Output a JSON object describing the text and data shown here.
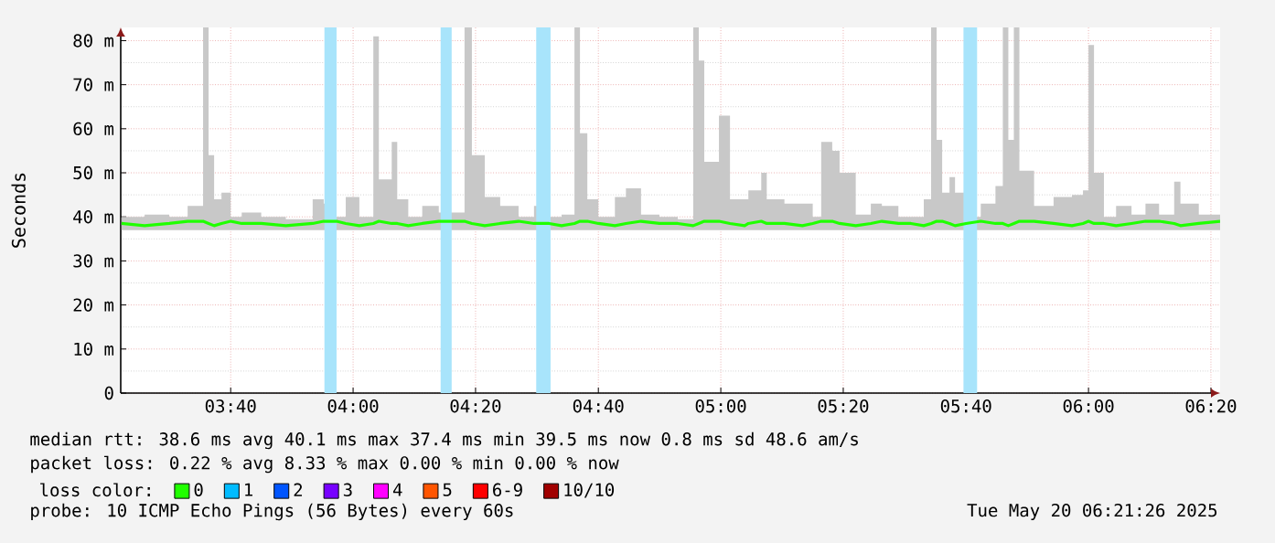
{
  "chart_data": {
    "type": "line",
    "ylabel": "Seconds",
    "x": [
      3.37,
      3.433,
      3.5,
      3.55,
      3.592,
      3.607,
      3.622,
      3.642,
      3.667,
      3.697,
      3.75,
      3.817,
      3.89,
      3.92,
      3.955,
      3.98,
      4.017,
      4.055,
      4.07,
      4.105,
      4.12,
      4.15,
      4.188,
      4.233,
      4.303,
      4.323,
      4.358,
      4.4,
      4.45,
      4.492,
      4.533,
      4.567,
      4.602,
      4.617,
      4.637,
      4.667,
      4.712,
      4.742,
      4.783,
      4.833,
      4.883,
      4.925,
      4.94,
      4.955,
      4.995,
      5.025,
      5.065,
      5.075,
      5.11,
      5.125,
      5.173,
      5.222,
      5.25,
      5.273,
      5.303,
      5.323,
      5.367,
      5.408,
      5.438,
      5.483,
      5.517,
      5.552,
      5.572,
      5.587,
      5.602,
      5.622,
      5.637,
      5.667,
      5.707,
      5.747,
      5.767,
      5.782,
      5.797,
      5.812,
      5.852,
      5.905,
      5.955,
      5.985,
      6.0,
      6.015,
      6.042,
      6.075,
      6.117,
      6.155,
      6.192,
      6.233,
      6.25,
      6.3,
      6.358
    ],
    "series": [
      {
        "name": "0",
        "color": "#20ff00",
        "values": [
          38.5,
          38,
          38.5,
          39,
          39,
          38.5,
          38,
          38.5,
          39,
          38.5,
          38.5,
          38,
          38.5,
          39,
          39,
          38.5,
          38,
          38.5,
          39,
          38.5,
          38.5,
          38,
          38.5,
          39,
          39,
          38.5,
          38,
          38.5,
          39,
          38.5,
          38.5,
          38,
          38.5,
          39,
          39,
          38.5,
          38,
          38.5,
          39,
          38.5,
          38.5,
          38,
          38.5,
          39,
          39,
          38.5,
          38,
          38.5,
          39,
          38.5,
          38.5,
          38,
          38.5,
          39,
          39,
          38.5,
          38,
          38.5,
          39,
          38.5,
          38.5,
          38,
          38.5,
          39,
          39,
          38.5,
          38,
          38.5,
          39,
          38.5,
          38.5,
          38,
          38.5,
          39,
          39,
          38.5,
          38,
          38.5,
          39,
          38.5,
          38.5,
          38,
          38.5,
          39,
          39,
          38.5,
          38,
          38.5,
          39
        ],
        "lower": [
          37,
          37,
          37,
          37,
          37,
          37,
          37,
          37,
          37,
          37,
          37,
          37,
          37,
          37,
          37,
          37,
          37,
          37,
          37,
          37,
          37,
          37,
          37,
          37,
          37,
          37,
          37,
          37,
          37,
          37,
          37,
          37,
          37,
          37,
          37,
          37,
          37,
          37,
          37,
          37,
          37,
          37,
          37,
          37,
          37,
          37,
          37,
          37,
          37,
          37,
          37,
          37,
          37,
          37,
          37,
          37,
          37,
          37,
          37,
          37,
          37,
          37,
          37,
          37,
          37,
          37,
          37,
          37,
          37,
          37,
          37,
          37,
          37,
          37,
          37,
          37,
          37,
          37,
          37,
          37,
          37,
          37,
          37,
          37,
          37,
          37,
          37,
          37,
          37
        ],
        "upper": [
          40,
          40.5,
          40,
          42.5,
          83,
          54,
          44,
          45.5,
          40,
          41,
          40,
          39.5,
          44,
          43,
          40,
          44.5,
          40,
          81,
          48.5,
          57,
          44,
          40,
          42.5,
          41,
          83,
          54,
          44.5,
          42.5,
          40,
          42.5,
          40,
          40.5,
          83,
          59,
          44,
          40,
          44.5,
          46.5,
          40.5,
          40,
          39.5,
          83,
          75.5,
          52.5,
          63,
          44,
          44,
          46,
          50,
          44,
          43,
          43,
          40,
          57,
          55,
          50,
          40.5,
          43,
          42.5,
          40,
          40,
          44,
          83,
          57.5,
          45.5,
          49,
          45.5,
          40,
          43,
          47,
          83,
          57.5,
          83,
          50.5,
          42.5,
          44.5,
          45,
          46,
          79,
          50,
          40,
          42.5,
          40.5,
          43,
          40.5,
          48,
          43,
          40.5,
          40
        ]
      },
      {
        "name": "1",
        "color": "#00bbff",
        "values": [
          null,
          null,
          null,
          null,
          null,
          null,
          null,
          null,
          null,
          null,
          null,
          null,
          null,
          null,
          null,
          null,
          null,
          null,
          null,
          null,
          null,
          null,
          null,
          null,
          null,
          null,
          null,
          null,
          null,
          null,
          null,
          null,
          null,
          null,
          null,
          null,
          null,
          null,
          null,
          null,
          null,
          null,
          null,
          null,
          null,
          null,
          null,
          null,
          null,
          null,
          null,
          null,
          null,
          null,
          null,
          null,
          null,
          null,
          null,
          null,
          null,
          null,
          null,
          null,
          null,
          null,
          null,
          null,
          null,
          null,
          null,
          null,
          null,
          null,
          null,
          null,
          null,
          null,
          null,
          null,
          null,
          null,
          null,
          null,
          null,
          null,
          null,
          null,
          null
        ]
      },
      {
        "name": "2",
        "color": "#0055ff",
        "values": [
          null,
          null,
          null,
          null,
          null,
          null,
          null,
          null,
          null,
          null,
          null,
          null,
          null,
          null,
          null,
          null,
          null,
          null,
          null,
          null,
          null,
          null,
          null,
          null,
          null,
          null,
          null,
          null,
          null,
          null,
          null,
          null,
          null,
          null,
          null,
          null,
          null,
          null,
          null,
          null,
          null,
          null,
          null,
          null,
          null,
          null,
          null,
          null,
          null,
          null,
          null,
          null,
          null,
          null,
          null,
          null,
          null,
          null,
          null,
          null,
          null,
          null,
          null,
          null,
          null,
          null,
          null,
          null,
          null,
          null,
          null,
          null,
          null,
          null,
          null,
          null,
          null,
          null,
          null,
          null,
          null,
          null,
          null,
          null,
          null,
          null,
          null,
          null,
          null
        ]
      },
      {
        "name": "3",
        "color": "#7700ff",
        "values": [
          null,
          null,
          null,
          null,
          null,
          null,
          null,
          null,
          null,
          null,
          null,
          null,
          null,
          null,
          null,
          null,
          null,
          null,
          null,
          null,
          null,
          null,
          null,
          null,
          null,
          null,
          null,
          null,
          null,
          null,
          null,
          null,
          null,
          null,
          null,
          null,
          null,
          null,
          null,
          null,
          null,
          null,
          null,
          null,
          null,
          null,
          null,
          null,
          null,
          null,
          null,
          null,
          null,
          null,
          null,
          null,
          null,
          null,
          null,
          null,
          null,
          null,
          null,
          null,
          null,
          null,
          null,
          null,
          null,
          null,
          null,
          null,
          null,
          null,
          null,
          null,
          null,
          null,
          null,
          null,
          null,
          null,
          null,
          null,
          null,
          null,
          null,
          null,
          null
        ]
      },
      {
        "name": "4",
        "color": "#ff00ff",
        "values": [
          null,
          null,
          null,
          null,
          null,
          null,
          null,
          null,
          null,
          null,
          null,
          null,
          null,
          null,
          null,
          null,
          null,
          null,
          null,
          null,
          null,
          null,
          null,
          null,
          null,
          null,
          null,
          null,
          null,
          null,
          null,
          null,
          null,
          null,
          null,
          null,
          null,
          null,
          null,
          null,
          null,
          null,
          null,
          null,
          null,
          null,
          null,
          null,
          null,
          null,
          null,
          null,
          null,
          null,
          null,
          null,
          null,
          null,
          null,
          null,
          null,
          null,
          null,
          null,
          null,
          null,
          null,
          null,
          null,
          null,
          null,
          null,
          null,
          null,
          null,
          null,
          null,
          null,
          null,
          null,
          null,
          null,
          null,
          null,
          null,
          null,
          null,
          null,
          null
        ]
      },
      {
        "name": "5",
        "color": "#ff5500",
        "values": [
          null,
          null,
          null,
          null,
          null,
          null,
          null,
          null,
          null,
          null,
          null,
          null,
          null,
          null,
          null,
          null,
          null,
          null,
          null,
          null,
          null,
          null,
          null,
          null,
          null,
          null,
          null,
          null,
          null,
          null,
          null,
          null,
          null,
          null,
          null,
          null,
          null,
          null,
          null,
          null,
          null,
          null,
          null,
          null,
          null,
          null,
          null,
          null,
          null,
          null,
          null,
          null,
          null,
          null,
          null,
          null,
          null,
          null,
          null,
          null,
          null,
          null,
          null,
          null,
          null,
          null,
          null,
          null,
          null,
          null,
          null,
          null,
          null,
          null,
          null,
          null,
          null,
          null,
          null,
          null,
          null,
          null,
          null,
          null,
          null,
          null,
          null,
          null,
          null
        ]
      },
      {
        "name": "6-9",
        "color": "#ff0000",
        "values": [
          null,
          null,
          null,
          null,
          null,
          null,
          null,
          null,
          null,
          null,
          null,
          null,
          null,
          null,
          null,
          null,
          null,
          null,
          null,
          null,
          null,
          null,
          null,
          null,
          null,
          null,
          null,
          null,
          null,
          null,
          null,
          null,
          null,
          null,
          null,
          null,
          null,
          null,
          null,
          null,
          null,
          null,
          null,
          null,
          null,
          null,
          null,
          null,
          null,
          null,
          null,
          null,
          null,
          null,
          null,
          null,
          null,
          null,
          null,
          null,
          null,
          null,
          null,
          null,
          null,
          null,
          null,
          null,
          null,
          null,
          null,
          null,
          null,
          null,
          null,
          null,
          null,
          null,
          null,
          null,
          null,
          null,
          null,
          null,
          null,
          null,
          null,
          null,
          null
        ]
      },
      {
        "name": "10/10",
        "color": "#a10000",
        "values": [
          null,
          null,
          null,
          null,
          null,
          null,
          null,
          null,
          null,
          null,
          null,
          null,
          null,
          null,
          null,
          null,
          null,
          null,
          null,
          null,
          null,
          null,
          null,
          null,
          null,
          null,
          null,
          null,
          null,
          null,
          null,
          null,
          null,
          null,
          null,
          null,
          null,
          null,
          null,
          null,
          null,
          null,
          null,
          null,
          null,
          null,
          null,
          null,
          null,
          null,
          null,
          null,
          null,
          null,
          null,
          null,
          null,
          null,
          null,
          null,
          null,
          null,
          null,
          null,
          null,
          null,
          null,
          null,
          null,
          null,
          null,
          null,
          null,
          null,
          null,
          null,
          null,
          null,
          null,
          null,
          null,
          null,
          null,
          null,
          null,
          null,
          null,
          null,
          null
        ]
      }
    ],
    "legend_title": "loss color:",
    "legend": "bottom",
    "grid": true,
    "xlim": [
      3.368,
      6.358
    ],
    "xticks": [
      {
        "value": 3.667,
        "label": "03:40"
      },
      {
        "value": 4,
        "label": "04:00"
      },
      {
        "value": 4.333,
        "label": "04:20"
      },
      {
        "value": 4.667,
        "label": "04:40"
      },
      {
        "value": 5,
        "label": "05:00"
      },
      {
        "value": 5.333,
        "label": "05:20"
      },
      {
        "value": 5.667,
        "label": "05:40"
      },
      {
        "value": 6,
        "label": "06:00"
      },
      {
        "value": 6.333,
        "label": "06:20"
      }
    ],
    "ylim": [
      0,
      83
    ],
    "yticks": [
      0,
      {
        "value": 10,
        "label": "10 m"
      },
      {
        "value": 20,
        "label": "20 m"
      },
      {
        "value": 30,
        "label": "30 m"
      },
      {
        "value": 40,
        "label": "40 m"
      },
      {
        "value": 50,
        "label": "50 m"
      },
      {
        "value": 60,
        "label": "60 m"
      },
      {
        "value": 70,
        "label": "70 m"
      },
      {
        "value": 80,
        "label": "80 m"
      }
    ],
    "bands": [
      {
        "axis": "x",
        "from": 3.922,
        "to": 3.955,
        "color": "#a8e4fb"
      },
      {
        "axis": "x",
        "from": 4.238,
        "to": 4.268,
        "color": "#a8e4fb"
      },
      {
        "axis": "x",
        "from": 4.498,
        "to": 4.537,
        "color": "#a8e4fb"
      },
      {
        "axis": "x",
        "from": 5.66,
        "to": 5.697,
        "color": "#a8e4fb"
      }
    ],
    "annotations": [
      "median rtt: 38.6 ms avg 40.1 ms max 37.4 ms min 39.5 ms now 0.8 ms sd 48.6 am/s",
      "packet loss: 0.22 % avg 8.33 % max 0.00 % min 0.00 % now",
      "probe: 10 ICMP Echo Pings (56 Bytes) every 60s",
      "Tue May 20 06:21:26 2025"
    ]
  }
}
